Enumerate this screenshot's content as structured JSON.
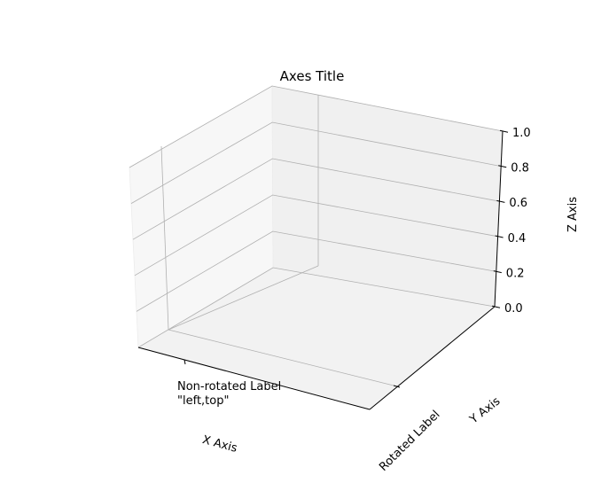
{
  "chart_data": {
    "type": "scatter",
    "projection": "3d",
    "title": "Axes Title",
    "xlabel": "X Axis",
    "ylabel": "Y Axis",
    "zlabel": "Z Axis",
    "series": [],
    "zlim": [
      0,
      1
    ],
    "z_ticks": [
      "0.0",
      "0.2",
      "0.4",
      "0.6",
      "0.8",
      "1.0"
    ],
    "grid": true,
    "pane_colors": {
      "back": "#f0f0f0",
      "side": "#f7f7f7",
      "floor": "#f2f2f2"
    },
    "annotations": [
      {
        "text_lines": [
          "Non-rotated Label",
          "\"left,top\""
        ]
      },
      {
        "text": "Rotated Label"
      }
    ]
  }
}
